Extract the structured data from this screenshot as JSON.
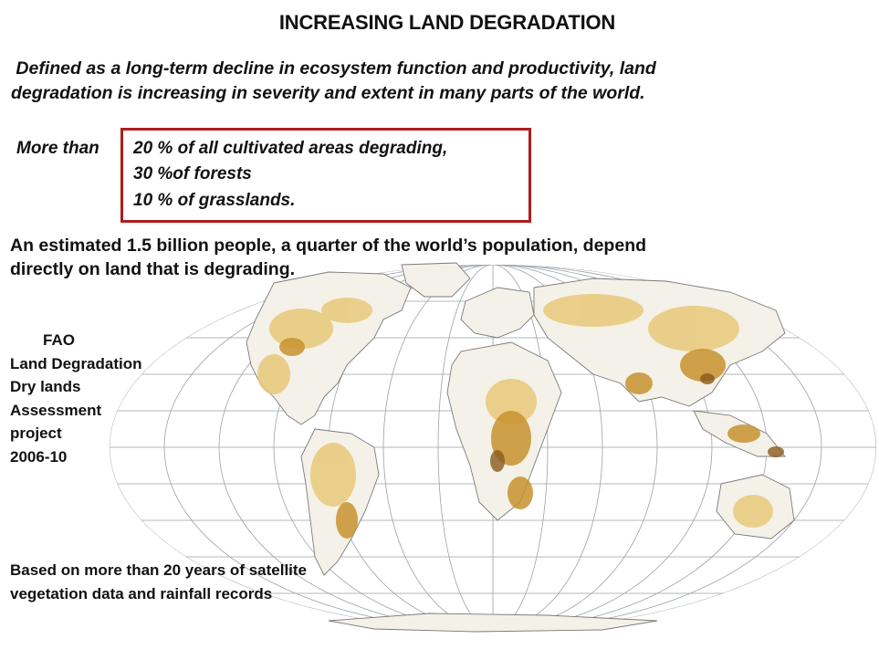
{
  "slide": {
    "title": "INCREASING LAND DEGRADATION",
    "definition_line1": " Defined as a long-term decline in ecosystem function and productivity, land",
    "definition_line2": "degradation is increasing in severity and extent in many parts of the world.",
    "stat_lead": "More than",
    "stats": [
      "20 % of all cultivated areas degrading,",
      "30 %of forests",
      "10 % of grasslands."
    ],
    "population_line1": "An estimated 1.5 billion people, a quarter of the world’s population, depend",
    "population_line2": "directly on land that is degrading.",
    "project_lines": [
      "FAO",
      "Land Degradation",
      "Dry lands",
      "Assessment",
      "project",
      "2006-10"
    ],
    "source_line1": "Based on more than 20 years of satellite",
    "source_line2": "vegetation data and rainfall records"
  },
  "colors": {
    "box_border": "#b01c1c",
    "degradation_light": "#e8c97a",
    "degradation_medium": "#c8922e",
    "degradation_dark": "#8a5a1c",
    "graticule": "#9aa2a8",
    "coastline": "#7a7a7a"
  }
}
